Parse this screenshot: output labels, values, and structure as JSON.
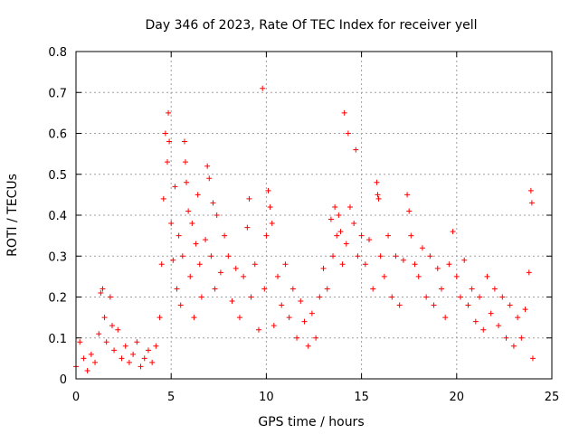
{
  "chart_data": {
    "type": "scatter",
    "title": "Day 346 of 2023, Rate Of TEC Index for receiver yell",
    "xlabel": "GPS time / hours",
    "ylabel": "ROTI / TECUs",
    "xlim": [
      0,
      25
    ],
    "ylim": [
      0,
      0.8
    ],
    "x_ticks": [
      0,
      5,
      10,
      15,
      20,
      25
    ],
    "x_tick_labels": [
      "0",
      "5",
      "10",
      "15",
      "20",
      "25"
    ],
    "y_ticks": [
      0,
      0.1,
      0.2,
      0.3,
      0.4,
      0.5,
      0.6,
      0.7,
      0.8
    ],
    "y_tick_labels": [
      "0",
      "0.1",
      "0.2",
      "0.3",
      "0.4",
      "0.5",
      "0.6",
      "0.7",
      "0.8"
    ],
    "grid": true,
    "marker": "plus",
    "color": "#ff0000",
    "series": [
      {
        "points": [
          [
            0.0,
            0.03
          ],
          [
            0.2,
            0.09
          ],
          [
            0.4,
            0.05
          ],
          [
            0.6,
            0.02
          ],
          [
            0.8,
            0.06
          ],
          [
            1.0,
            0.04
          ],
          [
            1.2,
            0.11
          ],
          [
            1.3,
            0.21
          ],
          [
            1.4,
            0.22
          ],
          [
            1.5,
            0.15
          ],
          [
            1.6,
            0.09
          ],
          [
            1.8,
            0.2
          ],
          [
            1.9,
            0.13
          ],
          [
            2.0,
            0.07
          ],
          [
            2.2,
            0.12
          ],
          [
            2.4,
            0.05
          ],
          [
            2.6,
            0.08
          ],
          [
            2.8,
            0.04
          ],
          [
            3.0,
            0.06
          ],
          [
            3.2,
            0.09
          ],
          [
            3.4,
            0.03
          ],
          [
            3.6,
            0.05
          ],
          [
            3.8,
            0.07
          ],
          [
            4.0,
            0.04
          ],
          [
            4.2,
            0.08
          ],
          [
            4.4,
            0.15
          ],
          [
            4.5,
            0.28
          ],
          [
            4.6,
            0.44
          ],
          [
            4.7,
            0.6
          ],
          [
            4.8,
            0.53
          ],
          [
            4.85,
            0.65
          ],
          [
            4.9,
            0.58
          ],
          [
            5.0,
            0.38
          ],
          [
            5.1,
            0.29
          ],
          [
            5.2,
            0.47
          ],
          [
            5.3,
            0.22
          ],
          [
            5.4,
            0.35
          ],
          [
            5.5,
            0.18
          ],
          [
            5.6,
            0.3
          ],
          [
            5.7,
            0.58
          ],
          [
            5.75,
            0.53
          ],
          [
            5.8,
            0.48
          ],
          [
            5.9,
            0.41
          ],
          [
            6.0,
            0.25
          ],
          [
            6.1,
            0.38
          ],
          [
            6.2,
            0.15
          ],
          [
            6.3,
            0.33
          ],
          [
            6.4,
            0.45
          ],
          [
            6.5,
            0.28
          ],
          [
            6.6,
            0.2
          ],
          [
            6.8,
            0.34
          ],
          [
            6.9,
            0.52
          ],
          [
            7.0,
            0.49
          ],
          [
            7.1,
            0.3
          ],
          [
            7.2,
            0.43
          ],
          [
            7.3,
            0.22
          ],
          [
            7.4,
            0.4
          ],
          [
            7.6,
            0.26
          ],
          [
            7.8,
            0.35
          ],
          [
            8.0,
            0.3
          ],
          [
            8.2,
            0.19
          ],
          [
            8.4,
            0.27
          ],
          [
            8.6,
            0.15
          ],
          [
            8.8,
            0.25
          ],
          [
            9.0,
            0.37
          ],
          [
            9.1,
            0.44
          ],
          [
            9.2,
            0.2
          ],
          [
            9.4,
            0.28
          ],
          [
            9.6,
            0.12
          ],
          [
            9.8,
            0.71
          ],
          [
            9.9,
            0.22
          ],
          [
            10.0,
            0.35
          ],
          [
            10.1,
            0.46
          ],
          [
            10.2,
            0.42
          ],
          [
            10.3,
            0.38
          ],
          [
            10.4,
            0.13
          ],
          [
            10.6,
            0.25
          ],
          [
            10.8,
            0.18
          ],
          [
            11.0,
            0.28
          ],
          [
            11.2,
            0.15
          ],
          [
            11.4,
            0.22
          ],
          [
            11.6,
            0.1
          ],
          [
            11.8,
            0.19
          ],
          [
            12.0,
            0.14
          ],
          [
            12.2,
            0.08
          ],
          [
            12.4,
            0.16
          ],
          [
            12.6,
            0.1
          ],
          [
            12.8,
            0.2
          ],
          [
            13.0,
            0.27
          ],
          [
            13.2,
            0.22
          ],
          [
            13.4,
            0.39
          ],
          [
            13.5,
            0.3
          ],
          [
            13.6,
            0.42
          ],
          [
            13.7,
            0.35
          ],
          [
            13.8,
            0.4
          ],
          [
            13.9,
            0.36
          ],
          [
            14.0,
            0.28
          ],
          [
            14.1,
            0.65
          ],
          [
            14.2,
            0.33
          ],
          [
            14.3,
            0.6
          ],
          [
            14.4,
            0.42
          ],
          [
            14.6,
            0.38
          ],
          [
            14.7,
            0.56
          ],
          [
            14.8,
            0.3
          ],
          [
            15.0,
            0.35
          ],
          [
            15.2,
            0.28
          ],
          [
            15.4,
            0.34
          ],
          [
            15.6,
            0.22
          ],
          [
            15.8,
            0.48
          ],
          [
            15.85,
            0.45
          ],
          [
            15.9,
            0.44
          ],
          [
            16.0,
            0.3
          ],
          [
            16.2,
            0.25
          ],
          [
            16.4,
            0.35
          ],
          [
            16.6,
            0.2
          ],
          [
            16.8,
            0.3
          ],
          [
            17.0,
            0.18
          ],
          [
            17.2,
            0.29
          ],
          [
            17.4,
            0.45
          ],
          [
            17.5,
            0.41
          ],
          [
            17.6,
            0.35
          ],
          [
            17.8,
            0.28
          ],
          [
            18.0,
            0.25
          ],
          [
            18.2,
            0.32
          ],
          [
            18.4,
            0.2
          ],
          [
            18.6,
            0.3
          ],
          [
            18.8,
            0.18
          ],
          [
            19.0,
            0.27
          ],
          [
            19.2,
            0.22
          ],
          [
            19.4,
            0.15
          ],
          [
            19.6,
            0.28
          ],
          [
            19.8,
            0.36
          ],
          [
            20.0,
            0.25
          ],
          [
            20.2,
            0.2
          ],
          [
            20.4,
            0.29
          ],
          [
            20.6,
            0.18
          ],
          [
            20.8,
            0.22
          ],
          [
            21.0,
            0.14
          ],
          [
            21.2,
            0.2
          ],
          [
            21.4,
            0.12
          ],
          [
            21.6,
            0.25
          ],
          [
            21.8,
            0.16
          ],
          [
            22.0,
            0.22
          ],
          [
            22.2,
            0.13
          ],
          [
            22.4,
            0.2
          ],
          [
            22.6,
            0.1
          ],
          [
            22.8,
            0.18
          ],
          [
            23.0,
            0.08
          ],
          [
            23.2,
            0.15
          ],
          [
            23.4,
            0.1
          ],
          [
            23.6,
            0.17
          ],
          [
            23.8,
            0.26
          ],
          [
            23.9,
            0.46
          ],
          [
            23.95,
            0.43
          ],
          [
            24.0,
            0.05
          ]
        ]
      }
    ]
  }
}
